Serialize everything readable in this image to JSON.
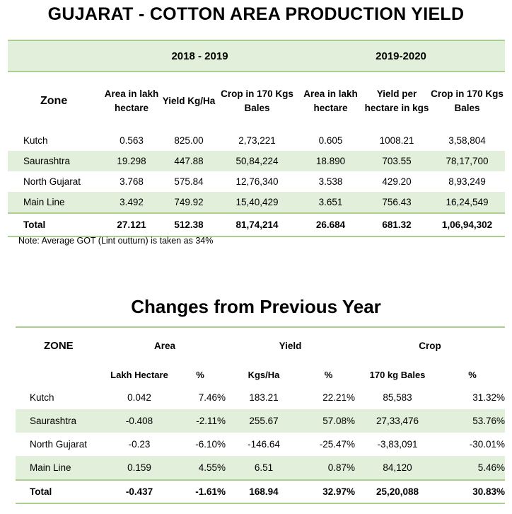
{
  "title": "GUJARAT - COTTON AREA PRODUCTION YIELD",
  "table1": {
    "years": [
      "2018 - 2019",
      "2019-2020"
    ],
    "zone_header": "Zone",
    "headers": [
      "Area in lakh hectare",
      "Yield Kg/Ha",
      "Crop in 170 Kgs Bales",
      "Area in lakh hectare",
      "Yield per hectare in kgs",
      "Crop in 170 Kgs Bales"
    ],
    "rows": [
      [
        "Kutch",
        "0.563",
        "825.00",
        "2,73,221",
        "0.605",
        "1008.21",
        "3,58,804"
      ],
      [
        "Saurashtra",
        "19.298",
        "447.88",
        "50,84,224",
        "18.890",
        "703.55",
        "78,17,700"
      ],
      [
        "North Gujarat",
        "3.768",
        "575.84",
        "12,76,340",
        "3.538",
        "429.20",
        "8,93,249"
      ],
      [
        "Main Line",
        "3.492",
        "749.92",
        "15,40,429",
        "3.651",
        "756.43",
        "16,24,549"
      ]
    ],
    "total": [
      "Total",
      "27.121",
      "512.38",
      "81,74,214",
      "26.684",
      "681.32",
      "1,06,94,302"
    ]
  },
  "note": "Note: Average GOT (Lint outturn) is taken as 34%",
  "title2": "Changes from Previous Year",
  "table2": {
    "zone_header": "ZONE",
    "groups": [
      "Area",
      "Yield",
      "Crop"
    ],
    "subheaders": [
      "Lakh Hectare",
      "%",
      "Kgs/Ha",
      "%",
      "170 kg Bales",
      "%"
    ],
    "rows": [
      [
        "Kutch",
        "0.042",
        "7.46%",
        "183.21",
        "22.21%",
        "85,583",
        "31.32%"
      ],
      [
        "Saurashtra",
        "-0.408",
        "-2.11%",
        "255.67",
        "57.08%",
        "27,33,476",
        "53.76%"
      ],
      [
        "North Gujarat",
        "-0.23",
        "-6.10%",
        "-146.64",
        "-25.47%",
        "-3,83,091",
        "-30.01%"
      ],
      [
        "Main Line",
        "0.159",
        "4.55%",
        "6.51",
        "0.87%",
        "84,120",
        "5.46%"
      ]
    ],
    "total": [
      "Total",
      "-0.437",
      "-1.61%",
      "168.94",
      "32.97%",
      "25,20,088",
      "30.83%"
    ]
  }
}
